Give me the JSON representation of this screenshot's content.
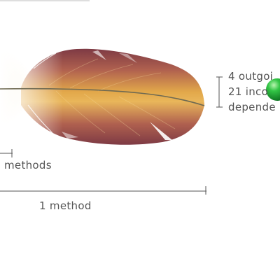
{
  "diagram": {
    "labels": {
      "methods_small": "methods",
      "methods_total": "1 method",
      "outgoing": "4 outgoi",
      "incoming": "21 inco",
      "dependents": "depende"
    },
    "colors": {
      "feather_dark": "#7e3a44",
      "feather_mid": "#b0614f",
      "feather_gold": "#e2a84a",
      "feather_light": "#f3d58e",
      "rule_line": "#555555",
      "node_green": "#1fb03a"
    },
    "icons": {
      "feather": "feather-illustration",
      "node": "green-node-sphere"
    }
  }
}
